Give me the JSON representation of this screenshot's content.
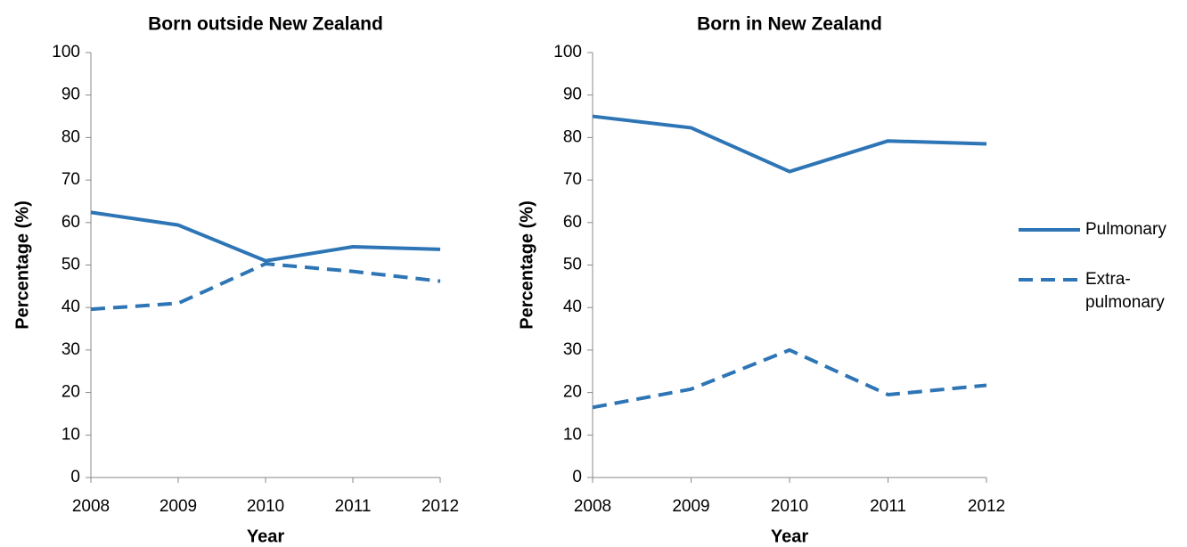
{
  "chart_data": [
    {
      "type": "line",
      "title": "Born outside New Zealand",
      "xlabel": "Year",
      "ylabel": "Percentage (%)",
      "x": [
        2008,
        2009,
        2010,
        2011,
        2012
      ],
      "xlim": [
        2008,
        2012
      ],
      "xticks": [
        2008,
        2009,
        2010,
        2011,
        2012
      ],
      "ylim": [
        0,
        100
      ],
      "yticks": [
        0,
        10,
        20,
        30,
        40,
        50,
        60,
        70,
        80,
        90,
        100
      ],
      "series": [
        {
          "color": "#2e75b6",
          "line_style": "solid",
          "values": [
            62.4,
            59.4,
            51,
            54.3,
            53.7
          ]
        },
        {
          "color": "#2e75b6",
          "line_style": "dashed",
          "values": [
            39.6,
            41,
            50.3,
            48.5,
            46.2
          ]
        }
      ]
    },
    {
      "type": "line",
      "title": "Born in New Zealand",
      "xlabel": "Year",
      "ylabel": "Percentage (%)",
      "x": [
        2008,
        2009,
        2010,
        2011,
        2012
      ],
      "xlim": [
        2008,
        2012
      ],
      "xticks": [
        2008,
        2009,
        2010,
        2011,
        2012
      ],
      "ylim": [
        0,
        100
      ],
      "yticks": [
        0,
        10,
        20,
        30,
        40,
        50,
        60,
        70,
        80,
        90,
        100
      ],
      "legend": "right",
      "series": [
        {
          "name": "Pulmonary",
          "color": "#2e75b6",
          "line_style": "solid",
          "values": [
            85,
            82.3,
            72,
            79.2,
            78.5
          ]
        },
        {
          "name": "Extra-pulmonary",
          "color": "#2e75b6",
          "line_style": "dashed",
          "values": [
            16.5,
            20.8,
            30,
            19.5,
            21.7
          ]
        }
      ]
    }
  ]
}
